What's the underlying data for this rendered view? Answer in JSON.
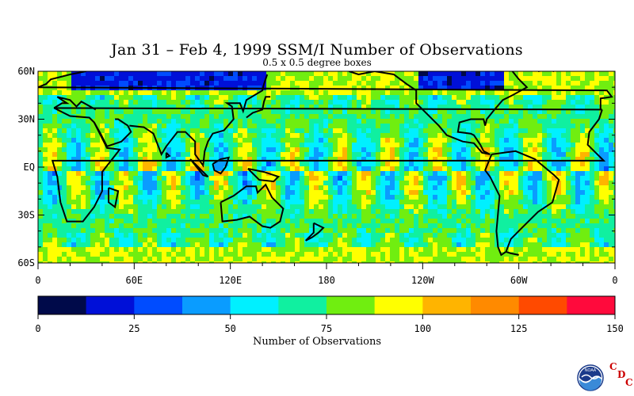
{
  "title": "Jan 31 – Feb 4, 1999 SSM/I Number of Observations",
  "subtitle": "0.5 x 0.5 degree boxes",
  "map": {
    "lat_labels": [
      "60N",
      "30N",
      "EQ",
      "30S",
      "60S"
    ],
    "lat_values": [
      60,
      30,
      0,
      -30,
      -60
    ],
    "lon_labels": [
      "0",
      "60E",
      "120E",
      "180",
      "120W",
      "60W",
      "0"
    ],
    "lon_values": [
      0,
      60,
      120,
      180,
      240,
      300,
      360
    ]
  },
  "colorbar": {
    "label": "Number of Observations",
    "ticks": [
      "0",
      "25",
      "50",
      "75",
      "100",
      "125",
      "150"
    ],
    "tick_values": [
      0,
      25,
      50,
      75,
      100,
      125,
      150
    ],
    "min": 0,
    "max": 150,
    "colors": [
      "#000a4a",
      "#0010d8",
      "#004cff",
      "#0a9cff",
      "#00f0ff",
      "#10f0a0",
      "#70ee10",
      "#ffff00",
      "#ffb400",
      "#ff8a00",
      "#ff4a00",
      "#ff0a3c"
    ]
  },
  "logo": {
    "icon": "noaa-logo-icon",
    "text": "NOAA",
    "cdc_letters": [
      "C",
      "D",
      "C"
    ]
  }
}
